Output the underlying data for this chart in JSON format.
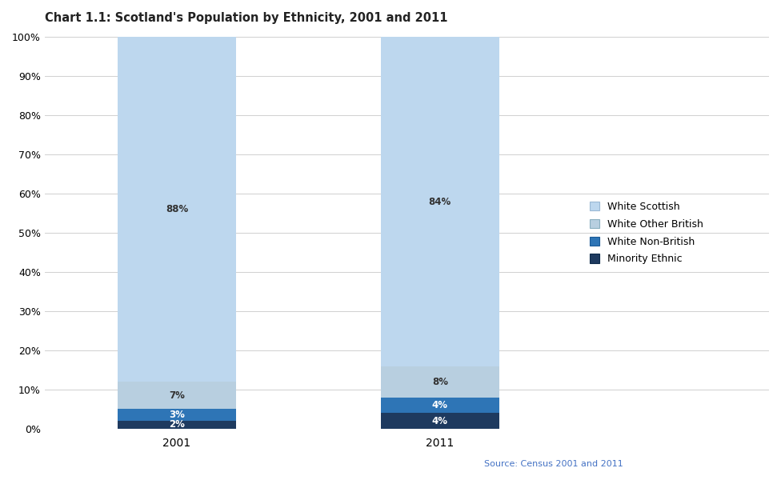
{
  "title": "Chart 1.1: Scotland's Population by Ethnicity, 2001 and 2011",
  "years": [
    "2001",
    "2011"
  ],
  "categories": [
    "Minority Ethnic",
    "White Non-British",
    "White Other British",
    "White Scottish"
  ],
  "values": {
    "2001": [
      2,
      3,
      7,
      88
    ],
    "2011": [
      4,
      4,
      8,
      84
    ]
  },
  "colors": [
    "#1e3a5f",
    "#2e75b6",
    "#b8cfe0",
    "#bdd7ee"
  ],
  "labels": {
    "2001": [
      "2%",
      "3%",
      "7%",
      "88%"
    ],
    "2011": [
      "4%",
      "4%",
      "8%",
      "84%"
    ]
  },
  "label_colors": {
    "2001": [
      "white",
      "white",
      "#333333",
      "#333333"
    ],
    "2011": [
      "white",
      "white",
      "#333333",
      "#333333"
    ]
  },
  "legend_labels": [
    "White Scottish",
    "White Other British",
    "White Non-British",
    "Minority Ethnic"
  ],
  "legend_colors": [
    "#bdd7ee",
    "#b8cfe0",
    "#2e75b6",
    "#1e3a5f"
  ],
  "legend_edge_colors": [
    "#9ab8d4",
    "#8aafc0",
    "#1a5a96",
    "#0d2a4a"
  ],
  "source_text": "Source: Census 2001 and 2011",
  "ylim": [
    0,
    100
  ],
  "yticks": [
    0,
    10,
    20,
    30,
    40,
    50,
    60,
    70,
    80,
    90,
    100
  ],
  "ytick_labels": [
    "0%",
    "10%",
    "20%",
    "30%",
    "40%",
    "50%",
    "60%",
    "70%",
    "80%",
    "90%",
    "100%"
  ],
  "x_positions": [
    1,
    3
  ],
  "bar_width": 0.9,
  "xlim": [
    0,
    5.5
  ],
  "x_tick_positions": [
    1,
    3
  ],
  "background_color": "#ffffff",
  "grid_color": "#d0d0d0",
  "source_color": "#4472c4",
  "title_fontsize": 10.5,
  "label_fontsize": 8.5,
  "tick_fontsize": 9,
  "legend_fontsize": 9,
  "source_fontsize": 8
}
